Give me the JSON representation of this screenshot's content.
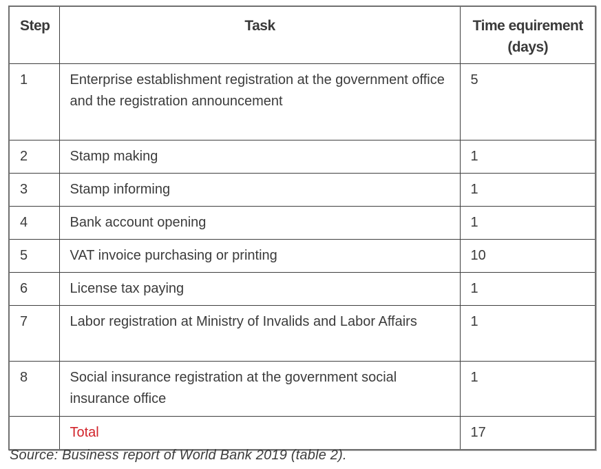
{
  "table": {
    "header": {
      "step": "Step",
      "task": "Task",
      "time_line1": "Time equirement",
      "time_line2": "(days)"
    },
    "rows": [
      {
        "step": "1",
        "task": "Enterprise establishment registration at the government office and the registration announcement",
        "days": "5"
      },
      {
        "step": "2",
        "task": "Stamp making",
        "days": "1"
      },
      {
        "step": "3",
        "task": "Stamp informing",
        "days": "1"
      },
      {
        "step": "4",
        "task": "Bank account opening",
        "days": "1"
      },
      {
        "step": "5",
        "task": "VAT invoice purchasing or printing",
        "days": "10"
      },
      {
        "step": "6",
        "task": "License tax paying",
        "days": "1"
      },
      {
        "step": "7",
        "task": "Labor registration at Ministry of Invalids and Labor Affairs",
        "days": "1"
      },
      {
        "step": "8",
        "task": "Social insurance registration at the government social insurance office",
        "days": "1"
      }
    ],
    "total": {
      "label": "Total",
      "days": "17"
    }
  },
  "source_note": "Source: Business report of World Bank 2019 (table 2).",
  "colors": {
    "total_red": "#d2232a",
    "text": "#3b3b3b",
    "border": "#3d3d3d"
  }
}
